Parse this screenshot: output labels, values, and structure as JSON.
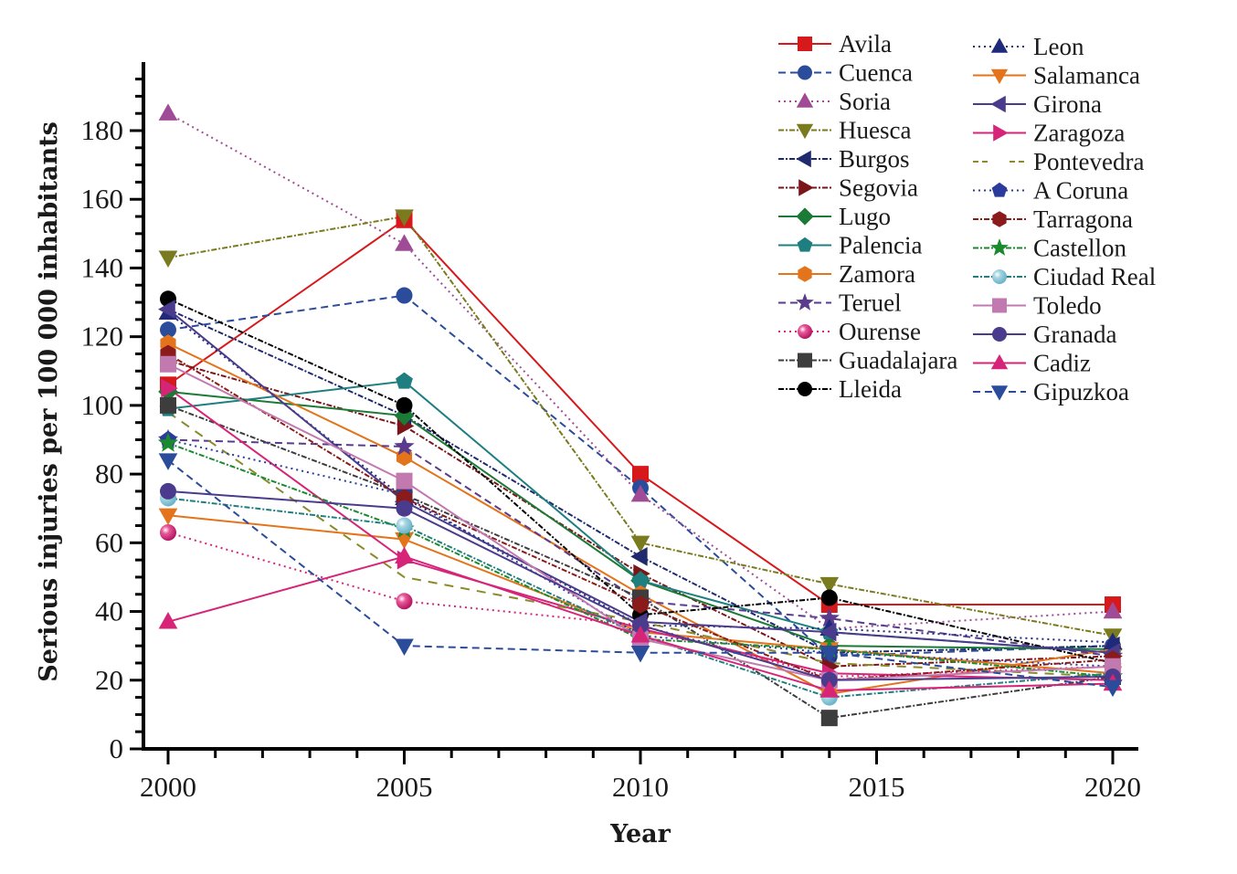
{
  "chart_data": {
    "type": "line",
    "title": "",
    "xlabel": "Year",
    "ylabel": "Serious injuries per 100 000 inhabitants",
    "x": [
      2000,
      2005,
      2010,
      2014,
      2020
    ],
    "xlim": [
      1999.6,
      2020.6
    ],
    "ylim": [
      0,
      198
    ],
    "x_ticks": [
      2000,
      2005,
      2010,
      2015,
      2020
    ],
    "x_tick_labels": [
      "2000",
      "2005",
      "2010",
      "2015",
      "2020"
    ],
    "y_ticks": [
      0,
      20,
      40,
      60,
      80,
      100,
      120,
      140,
      160,
      180
    ],
    "y_tick_labels": [
      "0",
      "20",
      "40",
      "60",
      "80",
      "100",
      "120",
      "140",
      "160",
      "180"
    ],
    "grid": false,
    "legend_position": "top-right",
    "series": [
      {
        "name": "Avila",
        "values": [
          106,
          154,
          80,
          42,
          42
        ],
        "color": "#d7191c",
        "marker": "square",
        "dash": "solid"
      },
      {
        "name": "Cuenca",
        "values": [
          122,
          132,
          76,
          27,
          30
        ],
        "color": "#2b4c9b",
        "marker": "circle",
        "dash": "dashed"
      },
      {
        "name": "Soria",
        "values": [
          185,
          147,
          74,
          35,
          40
        ],
        "color": "#a04b95",
        "marker": "triangle-up",
        "dash": "dotted"
      },
      {
        "name": "Huesca",
        "values": [
          143,
          155,
          60,
          48,
          33
        ],
        "color": "#7a7a1e",
        "marker": "triangle-down",
        "dash": "dashdot"
      },
      {
        "name": "Burgos",
        "values": [
          128,
          97,
          56,
          28,
          30
        ],
        "color": "#1f2a6e",
        "marker": "triangle-left",
        "dash": "dashdot"
      },
      {
        "name": "Segovia",
        "values": [
          113,
          94,
          51,
          24,
          27
        ],
        "color": "#7a1519",
        "marker": "triangle-right",
        "dash": "dashdot"
      },
      {
        "name": "Lugo",
        "values": [
          104,
          97,
          49,
          30,
          29
        ],
        "color": "#1b7a35",
        "marker": "diamond",
        "dash": "solid"
      },
      {
        "name": "Palencia",
        "values": [
          99,
          107,
          49,
          34,
          28
        ],
        "color": "#1f7f80",
        "marker": "pentagon",
        "dash": "solid"
      },
      {
        "name": "Zamora",
        "values": [
          118,
          85,
          45,
          16,
          29
        ],
        "color": "#e3741c",
        "marker": "hexagon",
        "dash": "solid"
      },
      {
        "name": "Teruel",
        "values": [
          90,
          88,
          43,
          38,
          27
        ],
        "color": "#5a3b8c",
        "marker": "star",
        "dash": "dashed"
      },
      {
        "name": "Ourense",
        "values": [
          63,
          43,
          36,
          21,
          24
        ],
        "color": "#d62478",
        "marker": "sphere",
        "dash": "dotted"
      },
      {
        "name": "Guadalajara",
        "values": [
          100,
          74,
          44,
          9,
          21
        ],
        "color": "#3d3d3d",
        "marker": "square",
        "dash": "dashdot"
      },
      {
        "name": "Lleida",
        "values": [
          131,
          100,
          39,
          44,
          25
        ],
        "color": "#000000",
        "marker": "circle",
        "dash": "dashdot"
      },
      {
        "name": "Leon",
        "values": [
          127,
          73,
          36,
          35,
          31
        ],
        "color": "#1f2a7a",
        "marker": "triangle-up",
        "dash": "dotted"
      },
      {
        "name": "Salamanca",
        "values": [
          68,
          61,
          34,
          29,
          22
        ],
        "color": "#e3741c",
        "marker": "triangle-down",
        "dash": "solid"
      },
      {
        "name": "Girona",
        "values": [
          128,
          72,
          37,
          34,
          28
        ],
        "color": "#4a3b8c",
        "marker": "triangle-left",
        "dash": "solid"
      },
      {
        "name": "Zaragoza",
        "values": [
          105,
          55,
          35,
          22,
          20
        ],
        "color": "#d62478",
        "marker": "triangle-right",
        "dash": "solid"
      },
      {
        "name": "Pontevedra",
        "values": [
          98,
          50,
          37,
          25,
          21
        ],
        "color": "#8a8a2a",
        "marker": "none",
        "dash": "longdash"
      },
      {
        "name": "A Coruna",
        "values": [
          90,
          74,
          33,
          28,
          24
        ],
        "color": "#2b3b9b",
        "marker": "pentagon",
        "dash": "dotted"
      },
      {
        "name": "Tarragona",
        "values": [
          115,
          73,
          42,
          20,
          26
        ],
        "color": "#8b1a1a",
        "marker": "hexagon",
        "dash": "dashdot"
      },
      {
        "name": "Castellon",
        "values": [
          89,
          64,
          32,
          29,
          21
        ],
        "color": "#1b8a2f",
        "marker": "star",
        "dash": "dashdot"
      },
      {
        "name": "Ciudad Real",
        "values": [
          73,
          65,
          33,
          15,
          22
        ],
        "color": "#1f7f80",
        "marker": "sphere",
        "dash": "dashdot"
      },
      {
        "name": "Toledo",
        "values": [
          112,
          78,
          32,
          20,
          24
        ],
        "color": "#c279b0",
        "marker": "square",
        "dash": "solid"
      },
      {
        "name": "Granada",
        "values": [
          75,
          70,
          36,
          20,
          21
        ],
        "color": "#4a3b8c",
        "marker": "circle",
        "dash": "solid"
      },
      {
        "name": "Cadiz",
        "values": [
          37,
          56,
          33,
          17,
          19
        ],
        "color": "#d62478",
        "marker": "triangle-up",
        "dash": "solid"
      },
      {
        "name": "Gipuzkoa",
        "values": [
          84,
          30,
          28,
          28,
          18
        ],
        "color": "#2b4c9b",
        "marker": "triangle-down",
        "dash": "dashed"
      }
    ]
  }
}
